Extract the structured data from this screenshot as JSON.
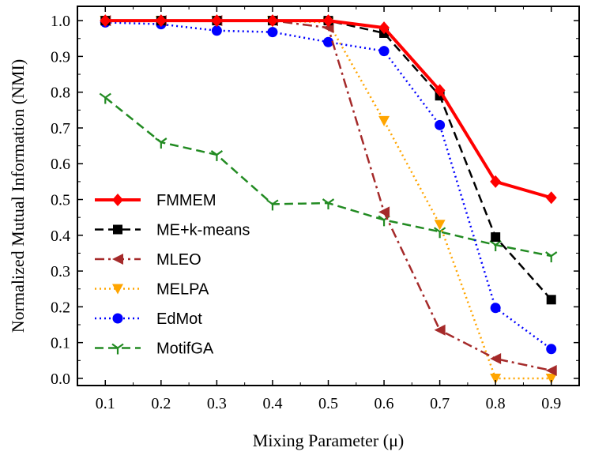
{
  "chart_data": {
    "type": "line",
    "xlabel": "Mixing Parameter (μ)",
    "ylabel": "Normalized Mutual Information (NMI)",
    "x": [
      0.1,
      0.2,
      0.3,
      0.4,
      0.5,
      0.6,
      0.7,
      0.8,
      0.9
    ],
    "x_tick_labels": [
      "0.1",
      "0.2",
      "0.3",
      "0.4",
      "0.5",
      "0.6",
      "0.7",
      "0.8",
      "0.9"
    ],
    "y_tick_labels": [
      "0.0",
      "0.1",
      "0.2",
      "0.3",
      "0.4",
      "0.5",
      "0.6",
      "0.7",
      "0.8",
      "0.9",
      "1.0"
    ],
    "xlim": [
      0.05,
      0.95
    ],
    "ylim": [
      -0.02,
      1.04
    ],
    "legend_position": "lower-left",
    "series": [
      {
        "name": "FMMEM",
        "color": "#ff0000",
        "marker": "diamond",
        "dash": "solid",
        "values": [
          1.0,
          1.0,
          1.0,
          1.0,
          1.0,
          0.98,
          0.805,
          0.55,
          0.505
        ]
      },
      {
        "name": "ME+k-means",
        "color": "#000000",
        "marker": "square",
        "dash": "dashed",
        "values": [
          1.0,
          1.0,
          1.0,
          1.0,
          1.0,
          0.965,
          0.79,
          0.395,
          0.22
        ]
      },
      {
        "name": "MLEO",
        "color": "#a52a2a",
        "marker": "triangle-left",
        "dash": "dashdot",
        "values": [
          1.0,
          1.0,
          1.0,
          1.0,
          0.98,
          0.465,
          0.135,
          0.055,
          0.022
        ]
      },
      {
        "name": "MELPA",
        "color": "#ffa500",
        "marker": "triangle-down",
        "dash": "dotted",
        "values": [
          1.0,
          1.0,
          1.0,
          1.0,
          0.995,
          0.72,
          0.43,
          0.0,
          0.0
        ]
      },
      {
        "name": "EdMot",
        "color": "#0000ff",
        "marker": "circle",
        "dash": "dotted",
        "values": [
          0.995,
          0.99,
          0.972,
          0.968,
          0.94,
          0.915,
          0.708,
          0.197,
          0.082
        ]
      },
      {
        "name": "MotifGA",
        "color": "#228b22",
        "marker": "tri-down",
        "dash": "dashed",
        "values": [
          0.785,
          0.66,
          0.625,
          0.487,
          0.49,
          0.443,
          0.41,
          0.373,
          0.342
        ]
      }
    ]
  }
}
